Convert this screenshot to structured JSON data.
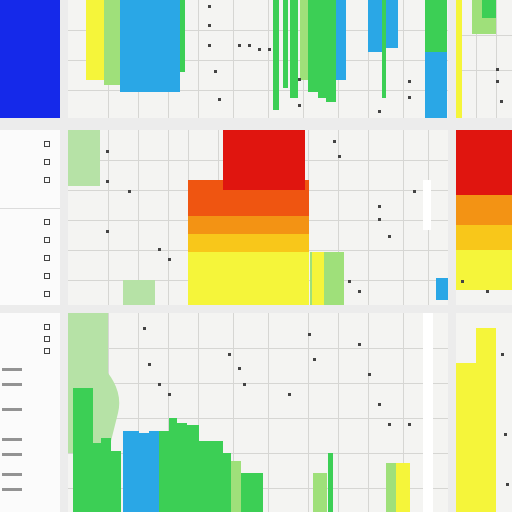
{
  "colors": {
    "blue_tile": "#1529ea",
    "grid_line": "#d6d6d3",
    "road_label": "#444444",
    "park_green": "#b6e2a6",
    "scale": [
      "#0f7ad8",
      "#2aa7e6",
      "#3ccf55",
      "#9fe07a",
      "#f5f53a",
      "#f8c71a",
      "#f39314",
      "#ef5511",
      "#e0150f"
    ]
  },
  "icons": {
    "legend": "square-outline-icon",
    "zoom": "zoom-control-icon",
    "layer": "layer-toggle-icon"
  },
  "side_panel": {
    "labels": [
      "",
      "",
      "",
      "",
      "",
      "",
      "",
      ""
    ]
  }
}
